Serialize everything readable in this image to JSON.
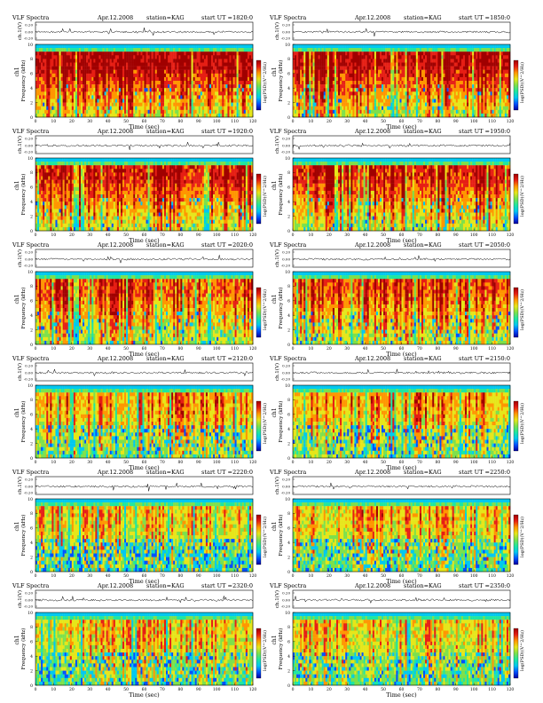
{
  "chart_data": {
    "type": "heatmap",
    "header": {
      "title": "VLF Spectra",
      "date": "Apr.12.2008",
      "station": "station=KAG",
      "start_prefix": "start  UT  ="
    },
    "waveform_ylabel": "ch.1(V)",
    "waveform_ticks": [
      "0.20",
      "0.00",
      "-0.20"
    ],
    "spectrogram_ylabel": "Frequency  (kHz)",
    "channel_label": "ch1",
    "colorbar_label": "log(PSD)(V^2/Hz)",
    "xlabel": "Time  (sec)",
    "xlim": [
      0,
      120
    ],
    "x_ticks": [
      0,
      10,
      20,
      30,
      40,
      50,
      60,
      70,
      80,
      90,
      100,
      110,
      120
    ],
    "ylim": [
      0,
      10
    ],
    "y_ticks": [
      0,
      2,
      4,
      6,
      8,
      10
    ],
    "colorscale": [
      "#0000a0",
      "#0050ff",
      "#00c8f0",
      "#1ee6a0",
      "#7de04b",
      "#e6e619",
      "#ff9600",
      "#e61e14",
      "#a00000"
    ],
    "panels": [
      {
        "start": "1820:0",
        "red_level": 0.92,
        "blue_level": 0.04,
        "seed": 11
      },
      {
        "start": "1850:0",
        "red_level": 0.9,
        "blue_level": 0.05,
        "seed": 23
      },
      {
        "start": "1920:0",
        "red_level": 0.82,
        "blue_level": 0.06,
        "seed": 37
      },
      {
        "start": "1950:0",
        "red_level": 0.8,
        "blue_level": 0.06,
        "seed": 41
      },
      {
        "start": "2020:0",
        "red_level": 0.66,
        "blue_level": 0.1,
        "seed": 53
      },
      {
        "start": "2050:0",
        "red_level": 0.66,
        "blue_level": 0.1,
        "seed": 67
      },
      {
        "start": "2120:0",
        "red_level": 0.5,
        "blue_level": 0.22,
        "seed": 71
      },
      {
        "start": "2150:0",
        "red_level": 0.5,
        "blue_level": 0.22,
        "seed": 83
      },
      {
        "start": "2220:0",
        "red_level": 0.4,
        "blue_level": 0.35,
        "seed": 97
      },
      {
        "start": "2250:0",
        "red_level": 0.42,
        "blue_level": 0.3,
        "seed": 101
      },
      {
        "start": "2320:0",
        "red_level": 0.4,
        "blue_level": 0.25,
        "seed": 113
      },
      {
        "start": "2350:0",
        "red_level": 0.4,
        "blue_level": 0.25,
        "seed": 127
      }
    ]
  }
}
